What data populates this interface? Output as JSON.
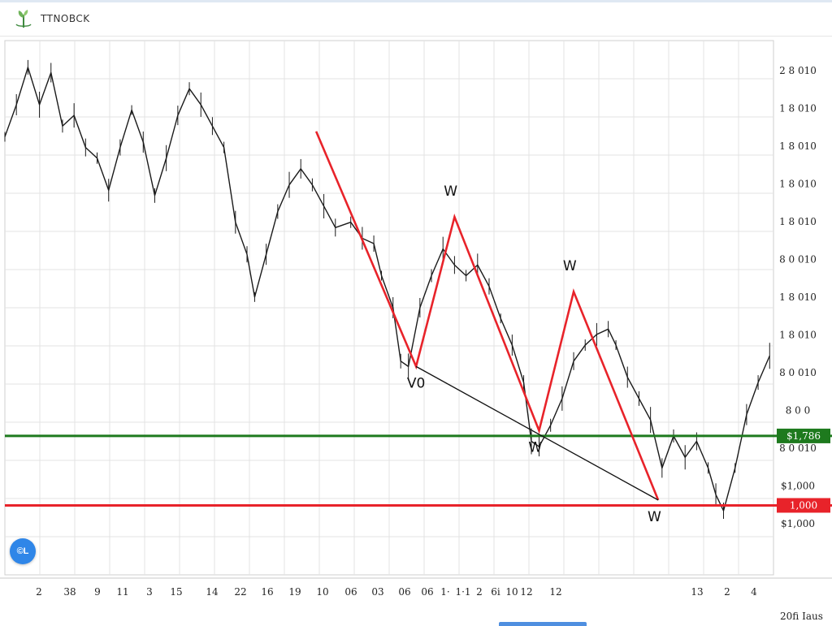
{
  "header": {
    "brand": "TTNOBCK",
    "logo_icon": "plant-logo-icon"
  },
  "fab": {
    "label": "©L",
    "icon": "chat-bubble-icon"
  },
  "corner_label": "20fi Iaus",
  "colors": {
    "price": "#1a1a1a",
    "wave": "#e8232a",
    "trendline": "#111111",
    "support": "#1e7a1e",
    "resistance": "#e8232a",
    "grid": "#e3e3e3",
    "accent": "#2f86e8"
  },
  "chart_data": {
    "type": "line",
    "title": "",
    "grid": true,
    "x_ticks": [
      "2",
      "38",
      "9",
      "11",
      "3",
      "15",
      "14",
      "22",
      "16",
      "19",
      "10",
      "06",
      "03",
      "06",
      "06",
      "1·",
      "1·1",
      "2",
      "6i",
      "10",
      "12",
      "12",
      "13",
      "2",
      "4"
    ],
    "y_ticks": [
      "2 8 010",
      "1 8 010",
      "1 8 010",
      "1 8 010",
      "1 8 010",
      "8 0 010",
      "1 8 010",
      "1 8 010",
      "8 0 010",
      "8 0 0",
      "8 0 010",
      "$1,000",
      "$1,000"
    ],
    "ylim": [
      0,
      100
    ],
    "price_points": [
      {
        "x": 0,
        "y": 82
      },
      {
        "x": 1.5,
        "y": 88
      },
      {
        "x": 3,
        "y": 95
      },
      {
        "x": 4.5,
        "y": 88
      },
      {
        "x": 6,
        "y": 94
      },
      {
        "x": 7.5,
        "y": 84
      },
      {
        "x": 9,
        "y": 86
      },
      {
        "x": 10.5,
        "y": 80
      },
      {
        "x": 12,
        "y": 78
      },
      {
        "x": 13.5,
        "y": 72
      },
      {
        "x": 15,
        "y": 80
      },
      {
        "x": 16.5,
        "y": 87
      },
      {
        "x": 18,
        "y": 81
      },
      {
        "x": 19.5,
        "y": 71
      },
      {
        "x": 21,
        "y": 78
      },
      {
        "x": 22.5,
        "y": 86
      },
      {
        "x": 24,
        "y": 91
      },
      {
        "x": 25.5,
        "y": 88
      },
      {
        "x": 27,
        "y": 84
      },
      {
        "x": 28.5,
        "y": 80
      },
      {
        "x": 30,
        "y": 66
      },
      {
        "x": 31.5,
        "y": 60
      },
      {
        "x": 32.5,
        "y": 52
      },
      {
        "x": 34,
        "y": 60
      },
      {
        "x": 35.5,
        "y": 68
      },
      {
        "x": 37,
        "y": 73
      },
      {
        "x": 38.5,
        "y": 76
      },
      {
        "x": 40,
        "y": 73
      },
      {
        "x": 41.5,
        "y": 69
      },
      {
        "x": 43,
        "y": 65
      },
      {
        "x": 45,
        "y": 66
      },
      {
        "x": 46.5,
        "y": 63
      },
      {
        "x": 48,
        "y": 62
      },
      {
        "x": 49,
        "y": 56
      },
      {
        "x": 50.5,
        "y": 50
      },
      {
        "x": 51.5,
        "y": 40
      },
      {
        "x": 52.5,
        "y": 39
      },
      {
        "x": 54,
        "y": 50
      },
      {
        "x": 55.5,
        "y": 56
      },
      {
        "x": 57,
        "y": 61
      },
      {
        "x": 58.5,
        "y": 58
      },
      {
        "x": 60,
        "y": 56
      },
      {
        "x": 61.5,
        "y": 58
      },
      {
        "x": 63,
        "y": 54
      },
      {
        "x": 64.5,
        "y": 48
      },
      {
        "x": 66,
        "y": 43
      },
      {
        "x": 67.5,
        "y": 36
      },
      {
        "x": 68.5,
        "y": 25
      },
      {
        "x": 69.5,
        "y": 24
      },
      {
        "x": 71,
        "y": 28
      },
      {
        "x": 72.5,
        "y": 33
      },
      {
        "x": 74,
        "y": 40
      },
      {
        "x": 75.5,
        "y": 43
      },
      {
        "x": 77,
        "y": 45
      },
      {
        "x": 78.5,
        "y": 46
      },
      {
        "x": 79.5,
        "y": 43
      },
      {
        "x": 81,
        "y": 37
      },
      {
        "x": 82.5,
        "y": 33
      },
      {
        "x": 84,
        "y": 29
      },
      {
        "x": 85.5,
        "y": 20
      },
      {
        "x": 87,
        "y": 26
      },
      {
        "x": 88.5,
        "y": 22
      },
      {
        "x": 90,
        "y": 25
      },
      {
        "x": 91.5,
        "y": 20
      },
      {
        "x": 92.5,
        "y": 15
      },
      {
        "x": 93.5,
        "y": 12
      },
      {
        "x": 95,
        "y": 20
      },
      {
        "x": 96.5,
        "y": 30
      },
      {
        "x": 98,
        "y": 36
      },
      {
        "x": 99.5,
        "y": 41
      }
    ],
    "wave_points": [
      {
        "x": 40.5,
        "y": 83
      },
      {
        "x": 53.5,
        "y": 39
      },
      {
        "x": 58.5,
        "y": 67
      },
      {
        "x": 69.5,
        "y": 27
      },
      {
        "x": 74,
        "y": 53
      },
      {
        "x": 85,
        "y": 14
      }
    ],
    "wave_labels": [
      {
        "text": "W",
        "x": 58,
        "y": 71
      },
      {
        "text": "W",
        "x": 73.5,
        "y": 57
      },
      {
        "text": "V0",
        "x": 53.5,
        "y": 35
      },
      {
        "text": "W",
        "x": 69,
        "y": 23
      },
      {
        "text": "W",
        "x": 84.5,
        "y": 10
      }
    ],
    "trendline": [
      {
        "x": 53.5,
        "y": 39
      },
      {
        "x": 85,
        "y": 14
      }
    ],
    "support": {
      "y": 26,
      "label": "$1,786"
    },
    "resistance": {
      "y": 13,
      "label": "1,000"
    }
  }
}
